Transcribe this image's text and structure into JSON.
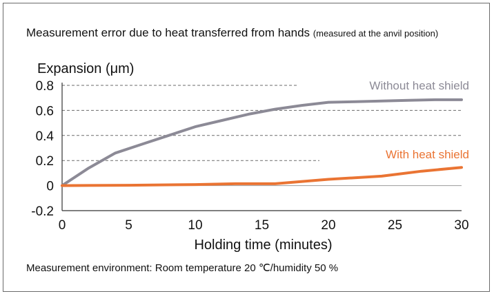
{
  "title": "Measurement error due to heat transferred from hands",
  "title_note": "(measured at the anvil position)",
  "footer": "Measurement environment: Room temperature 20 ℃/humidity 50 %",
  "chart_data": {
    "type": "line",
    "ylabel": "Expansion (μm)",
    "xlabel": "Holding time (minutes)",
    "xlim": [
      0,
      30
    ],
    "ylim": [
      -0.2,
      0.8
    ],
    "xticks": [
      "0",
      "5",
      "10",
      "15",
      "20",
      "25",
      "30"
    ],
    "yticks": [
      "0.8",
      "0.6",
      "0.4",
      "0.2",
      "0",
      "-0.2"
    ],
    "grid": "dashed horizontal",
    "series": [
      {
        "name": "Without heat shield",
        "color": "#8c8a96",
        "x": [
          0,
          2,
          4,
          6,
          8,
          10,
          12,
          14,
          16,
          18,
          20,
          22,
          24,
          26,
          28,
          30
        ],
        "y": [
          0,
          0.14,
          0.26,
          0.33,
          0.4,
          0.47,
          0.52,
          0.57,
          0.61,
          0.64,
          0.665,
          0.67,
          0.675,
          0.68,
          0.685,
          0.685
        ]
      },
      {
        "name": "With heat shield",
        "color": "#ea7433",
        "x": [
          0,
          5,
          10,
          13,
          16,
          20,
          24,
          27,
          30
        ],
        "y": [
          0,
          0.003,
          0.008,
          0.015,
          0.015,
          0.05,
          0.075,
          0.115,
          0.145
        ]
      }
    ]
  }
}
